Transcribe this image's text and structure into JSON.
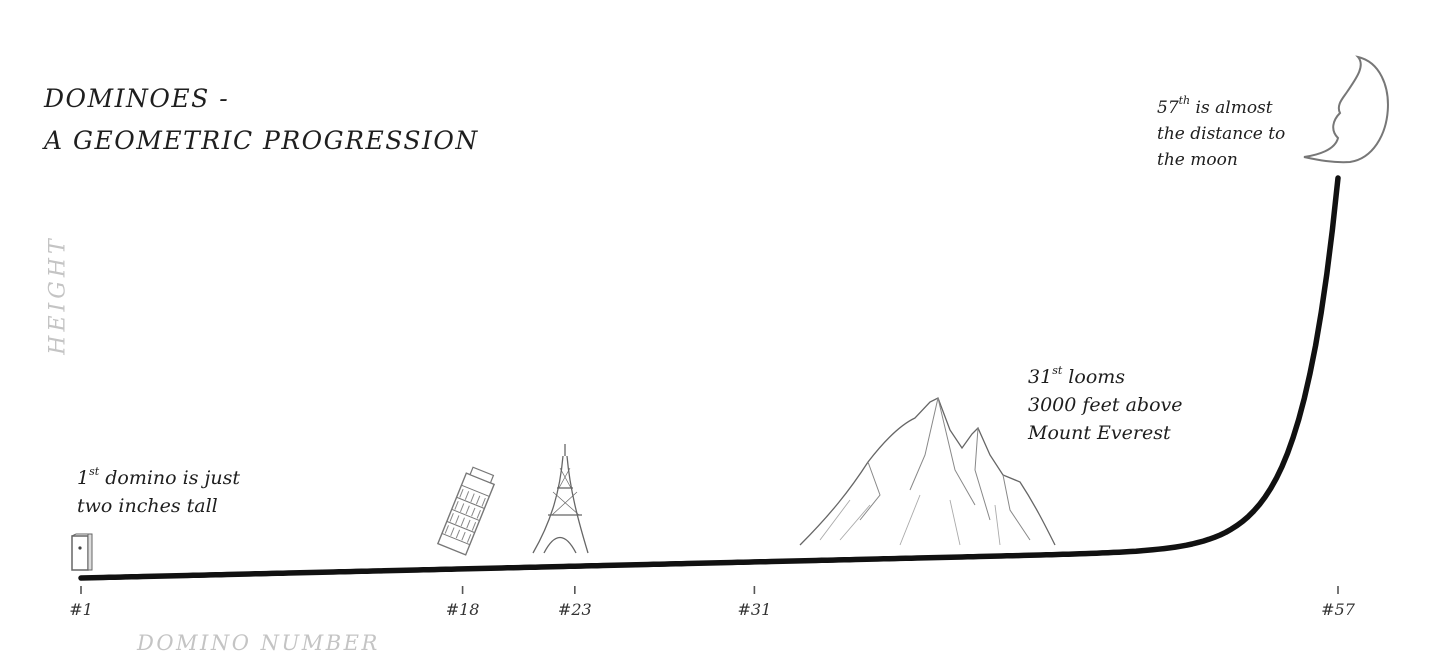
{
  "chart_data": {
    "type": "line",
    "title": "DOMINOES - A GEOMETRIC PROGRESSION",
    "title_lines": [
      "DOMINOES -",
      "A GEOMETRIC PROGRESSION"
    ],
    "xlabel": "DOMINO NUMBER",
    "ylabel": "HEIGHT",
    "x_ticks": [
      1,
      18,
      23,
      31,
      57
    ],
    "x_tick_labels": [
      "#1",
      "#18",
      "#23",
      "#31",
      "#57"
    ],
    "xlim": [
      1,
      57
    ],
    "grid": false,
    "series": [
      {
        "growth": "geometric",
        "x": [
          1,
          57
        ]
      }
    ],
    "annotations": [
      {
        "x": 1,
        "lines": [
          {
            "main": "1",
            "sup": "st",
            "rest": " domino is just"
          },
          {
            "main": "two inches tall"
          }
        ],
        "icon": "domino-icon"
      },
      {
        "x": 18,
        "icon": "leaning-tower-of-pisa-icon"
      },
      {
        "x": 23,
        "icon": "eiffel-tower-icon"
      },
      {
        "x": 31,
        "lines": [
          {
            "main": "31",
            "sup": "st",
            "rest": " looms"
          },
          {
            "main": "3000 feet above"
          },
          {
            "main": "Mount Everest"
          }
        ],
        "icon": "mountain-everest-icon"
      },
      {
        "x": 57,
        "lines": [
          {
            "main": "57",
            "sup": "th",
            "rest": " is almost"
          },
          {
            "main": "the distance to"
          },
          {
            "main": "the moon"
          }
        ],
        "icon": "crescent-moon-icon"
      }
    ]
  },
  "colors": {
    "curve": "#111111",
    "axis_label": "#c4c4c4",
    "text": "#1e1e1e",
    "sketch": "#777777"
  }
}
